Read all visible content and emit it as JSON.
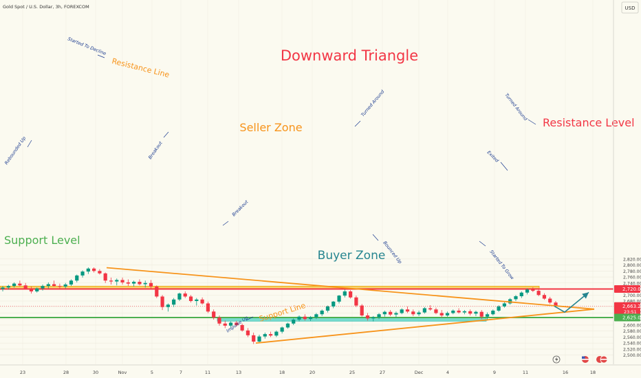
{
  "header": {
    "symbol_title": "Gold Spot / U.S. Dollar, 3h, FOREXCOM",
    "currency_label": "USD"
  },
  "chart_data": {
    "type": "candlestick",
    "title": "Downward Triangle",
    "ylim": [
      2500,
      2840
    ],
    "y_ticks": [
      2500,
      2520,
      2540,
      2560,
      2580,
      2600,
      2620,
      2640,
      2660,
      2680,
      2700,
      2720,
      2740,
      2760,
      2780,
      2800,
      2820
    ],
    "x_tick_labels": [
      "23",
      "28",
      "30",
      "Nov",
      "5",
      "7",
      "11",
      "13",
      "18",
      "20",
      "25",
      "27",
      "Dec",
      "4",
      "9",
      "11",
      "16",
      "18"
    ],
    "price_line": {
      "value": 2663.27,
      "label": "2,663.27",
      "countdown": "23:51",
      "color": "#f23645"
    },
    "levels": [
      {
        "name": "Resistance Level",
        "value": 2720.0,
        "label": "2,720.00",
        "color": "#f23645"
      },
      {
        "name": "Support Level",
        "value": 2625.0,
        "label": "2,625.00",
        "color": "#4caf50"
      }
    ],
    "zones": [
      {
        "name": "Seller Zone",
        "top": 2729.5,
        "bottom": 2719.5,
        "color": "#f4b400"
      },
      {
        "name": "Buyer Zone",
        "top": 2624.0,
        "bottom": 2613.0,
        "color": "#4dd2c4"
      }
    ],
    "triangle": {
      "resistance_line": {
        "label": "Resistance Line",
        "from": [
          "30 Oct",
          2791
        ],
        "to": [
          "18 Dec",
          2653
        ]
      },
      "support_line": {
        "label": "Support Line",
        "from": [
          "14 Nov",
          2540
        ],
        "to": [
          "18 Dec",
          2653
        ]
      }
    },
    "annotations": [
      "Started To Decline",
      "Rebounded Up",
      "Breakout",
      "Breakout",
      "Impulse Up",
      "Turned Around",
      "Bounced Up",
      "Started To Grow",
      "Exited",
      "Turned Around"
    ],
    "projection": {
      "low": 2643,
      "target": 2718
    },
    "candles": [
      [
        2720,
        2730,
        2712,
        2725
      ],
      [
        2725,
        2734,
        2718,
        2730
      ],
      [
        2730,
        2742,
        2725,
        2738
      ],
      [
        2738,
        2748,
        2728,
        2732
      ],
      [
        2732,
        2740,
        2718,
        2722
      ],
      [
        2722,
        2728,
        2705,
        2712
      ],
      [
        2712,
        2725,
        2708,
        2722
      ],
      [
        2722,
        2735,
        2715,
        2730
      ],
      [
        2730,
        2742,
        2722,
        2736
      ],
      [
        2736,
        2748,
        2728,
        2730
      ],
      [
        2730,
        2738,
        2720,
        2728
      ],
      [
        2728,
        2740,
        2722,
        2735
      ],
      [
        2735,
        2752,
        2730,
        2748
      ],
      [
        2748,
        2768,
        2742,
        2765
      ],
      [
        2765,
        2782,
        2758,
        2778
      ],
      [
        2778,
        2792,
        2770,
        2788
      ],
      [
        2788,
        2792,
        2775,
        2780
      ],
      [
        2780,
        2786,
        2768,
        2772
      ],
      [
        2772,
        2775,
        2740,
        2748
      ],
      [
        2748,
        2758,
        2735,
        2745
      ],
      [
        2745,
        2755,
        2732,
        2750
      ],
      [
        2750,
        2758,
        2735,
        2742
      ],
      [
        2742,
        2752,
        2730,
        2738
      ],
      [
        2738,
        2748,
        2728,
        2744
      ],
      [
        2744,
        2752,
        2732,
        2736
      ],
      [
        2736,
        2748,
        2725,
        2740
      ],
      [
        2740,
        2750,
        2722,
        2728
      ],
      [
        2728,
        2732,
        2690,
        2695
      ],
      [
        2695,
        2700,
        2650,
        2660
      ],
      [
        2660,
        2672,
        2645,
        2668
      ],
      [
        2668,
        2690,
        2660,
        2685
      ],
      [
        2685,
        2708,
        2680,
        2705
      ],
      [
        2705,
        2712,
        2690,
        2695
      ],
      [
        2695,
        2700,
        2675,
        2680
      ],
      [
        2680,
        2690,
        2665,
        2685
      ],
      [
        2685,
        2692,
        2668,
        2672
      ],
      [
        2672,
        2678,
        2640,
        2645
      ],
      [
        2645,
        2652,
        2618,
        2625
      ],
      [
        2625,
        2632,
        2598,
        2605
      ],
      [
        2605,
        2615,
        2590,
        2598
      ],
      [
        2598,
        2612,
        2592,
        2608
      ],
      [
        2608,
        2614,
        2596,
        2600
      ],
      [
        2600,
        2605,
        2578,
        2582
      ],
      [
        2582,
        2590,
        2560,
        2566
      ],
      [
        2566,
        2575,
        2537,
        2545
      ],
      [
        2545,
        2568,
        2542,
        2562
      ],
      [
        2562,
        2575,
        2555,
        2570
      ],
      [
        2570,
        2578,
        2560,
        2565
      ],
      [
        2565,
        2582,
        2560,
        2578
      ],
      [
        2578,
        2595,
        2572,
        2592
      ],
      [
        2592,
        2608,
        2588,
        2605
      ],
      [
        2605,
        2622,
        2600,
        2618
      ],
      [
        2618,
        2632,
        2612,
        2628
      ],
      [
        2628,
        2636,
        2615,
        2620
      ],
      [
        2620,
        2630,
        2614,
        2626
      ],
      [
        2626,
        2640,
        2620,
        2636
      ],
      [
        2636,
        2652,
        2630,
        2648
      ],
      [
        2648,
        2665,
        2642,
        2662
      ],
      [
        2662,
        2680,
        2656,
        2678
      ],
      [
        2678,
        2700,
        2672,
        2698
      ],
      [
        2698,
        2718,
        2692,
        2712
      ],
      [
        2712,
        2716,
        2688,
        2692
      ],
      [
        2692,
        2698,
        2660,
        2665
      ],
      [
        2665,
        2670,
        2628,
        2632
      ],
      [
        2632,
        2640,
        2615,
        2622
      ],
      [
        2622,
        2630,
        2612,
        2626
      ],
      [
        2626,
        2640,
        2620,
        2636
      ],
      [
        2636,
        2648,
        2628,
        2644
      ],
      [
        2644,
        2650,
        2630,
        2635
      ],
      [
        2635,
        2645,
        2626,
        2640
      ],
      [
        2640,
        2656,
        2636,
        2652
      ],
      [
        2652,
        2662,
        2640,
        2645
      ],
      [
        2645,
        2652,
        2630,
        2636
      ],
      [
        2636,
        2648,
        2630,
        2642
      ],
      [
        2642,
        2660,
        2638,
        2656
      ],
      [
        2656,
        2666,
        2648,
        2652
      ],
      [
        2652,
        2658,
        2636,
        2640
      ],
      [
        2640,
        2650,
        2625,
        2632
      ],
      [
        2632,
        2645,
        2628,
        2640
      ],
      [
        2640,
        2652,
        2636,
        2648
      ],
      [
        2648,
        2656,
        2638,
        2642
      ],
      [
        2642,
        2650,
        2636,
        2646
      ],
      [
        2646,
        2652,
        2632,
        2638
      ],
      [
        2638,
        2648,
        2630,
        2644
      ],
      [
        2644,
        2650,
        2620,
        2628
      ],
      [
        2628,
        2642,
        2615,
        2636
      ],
      [
        2636,
        2652,
        2632,
        2648
      ],
      [
        2648,
        2666,
        2644,
        2662
      ],
      [
        2662,
        2676,
        2658,
        2672
      ],
      [
        2672,
        2690,
        2668,
        2686
      ],
      [
        2686,
        2700,
        2680,
        2696
      ],
      [
        2696,
        2712,
        2690,
        2708
      ],
      [
        2708,
        2722,
        2702,
        2718
      ],
      [
        2718,
        2726,
        2710,
        2714
      ],
      [
        2714,
        2720,
        2696,
        2700
      ],
      [
        2700,
        2706,
        2684,
        2688
      ],
      [
        2688,
        2694,
        2670,
        2675
      ],
      [
        2675,
        2680,
        2658,
        2663
      ]
    ]
  }
}
